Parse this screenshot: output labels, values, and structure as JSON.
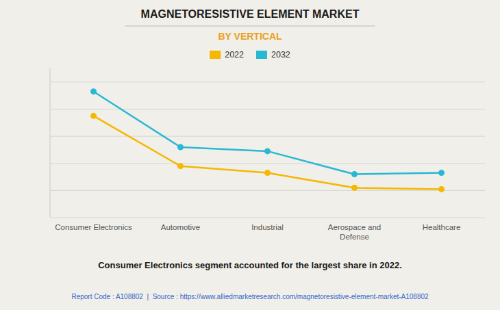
{
  "chart_data": {
    "type": "line",
    "title": "MAGNETORESISTIVE ELEMENT MARKET",
    "subtitle": "BY VERTICAL",
    "categories": [
      "Consumer Electronics",
      "Automotive",
      "Industrial",
      "Aerospace and\nDefense",
      "Healthcare"
    ],
    "series": [
      {
        "name": "2022",
        "color": "#F5B800",
        "values": [
          75,
          38,
          33,
          22,
          21
        ]
      },
      {
        "name": "2032",
        "color": "#29B8D4",
        "values": [
          93,
          52,
          49,
          32,
          33
        ]
      }
    ],
    "ylim": [
      0,
      110
    ],
    "yticks": [
      0,
      20,
      40,
      60,
      80,
      100
    ],
    "grid": true,
    "tick_labels": "x",
    "legend": "top",
    "marker": "circle",
    "annotations": [
      "Consumer Electronics segment accounted for the largest share in 2022.",
      "Report Code : A108802  |  Source : https://www.alliedmarketresearch.com/magnetoresistive-element-market-A108802"
    ]
  }
}
